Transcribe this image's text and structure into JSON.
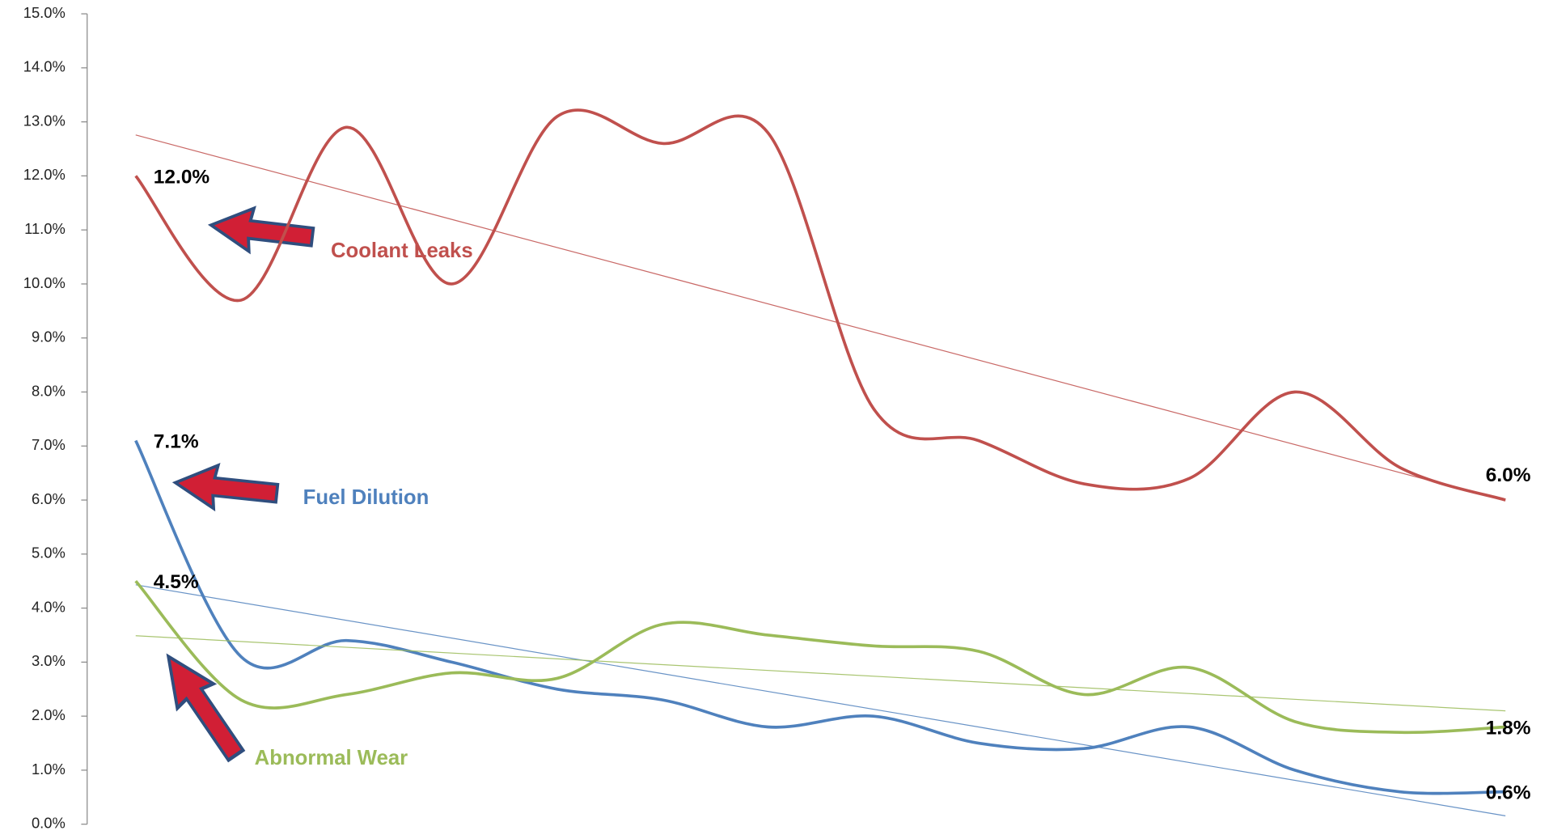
{
  "chart_data": {
    "type": "line",
    "categories": [
      null,
      null,
      null,
      null,
      null,
      null,
      null,
      null,
      null,
      null,
      null,
      null,
      null,
      null
    ],
    "series": [
      {
        "name": "Coolant Leaks",
        "color": "#c0504d",
        "trendline": true,
        "values": [
          12.0,
          9.7,
          12.9,
          10.0,
          13.1,
          12.6,
          12.8,
          7.7,
          7.1,
          6.3,
          6.4,
          8.0,
          6.6,
          6.0
        ],
        "value_labels": [
          "12.0%",
          null,
          null,
          null,
          null,
          null,
          null,
          null,
          null,
          null,
          null,
          null,
          null,
          "6.0%"
        ]
      },
      {
        "name": "Fuel Dilution",
        "color": "#4f81bd",
        "trendline": true,
        "values": [
          7.1,
          3.1,
          3.4,
          3.0,
          2.5,
          2.3,
          1.8,
          2.0,
          1.5,
          1.4,
          1.8,
          1.0,
          0.6,
          0.6
        ],
        "value_labels": [
          "7.1%",
          null,
          null,
          null,
          null,
          null,
          null,
          null,
          null,
          null,
          null,
          null,
          null,
          "0.6%"
        ]
      },
      {
        "name": "Abnormal Wear",
        "color": "#9bbb59",
        "trendline": true,
        "values": [
          4.5,
          2.3,
          2.4,
          2.8,
          2.7,
          3.7,
          3.5,
          3.3,
          3.2,
          2.4,
          2.9,
          1.9,
          1.7,
          1.8
        ],
        "value_labels": [
          "4.5%",
          null,
          null,
          null,
          null,
          null,
          null,
          null,
          null,
          null,
          null,
          null,
          null,
          "1.8%"
        ]
      }
    ],
    "ylim": [
      0,
      15
    ],
    "yticks": [
      {
        "value": 0,
        "label": "0.0%"
      },
      {
        "value": 1,
        "label": "1.0%"
      },
      {
        "value": 2,
        "label": "2.0%"
      },
      {
        "value": 3,
        "label": "3.0%"
      },
      {
        "value": 4,
        "label": "4.0%"
      },
      {
        "value": 5,
        "label": "5.0%"
      },
      {
        "value": 6,
        "label": "6.0%"
      },
      {
        "value": 7,
        "label": "7.0%"
      },
      {
        "value": 8,
        "label": "8.0%"
      },
      {
        "value": 9,
        "label": "9.0%"
      },
      {
        "value": 10,
        "label": "10.0%"
      },
      {
        "value": 11,
        "label": "11.0%"
      },
      {
        "value": 12,
        "label": "12.0%"
      },
      {
        "value": 13,
        "label": "13.0%"
      },
      {
        "value": 14,
        "label": "14.0%"
      },
      {
        "value": 15,
        "label": "15.0%"
      }
    ],
    "grid": false
  }
}
